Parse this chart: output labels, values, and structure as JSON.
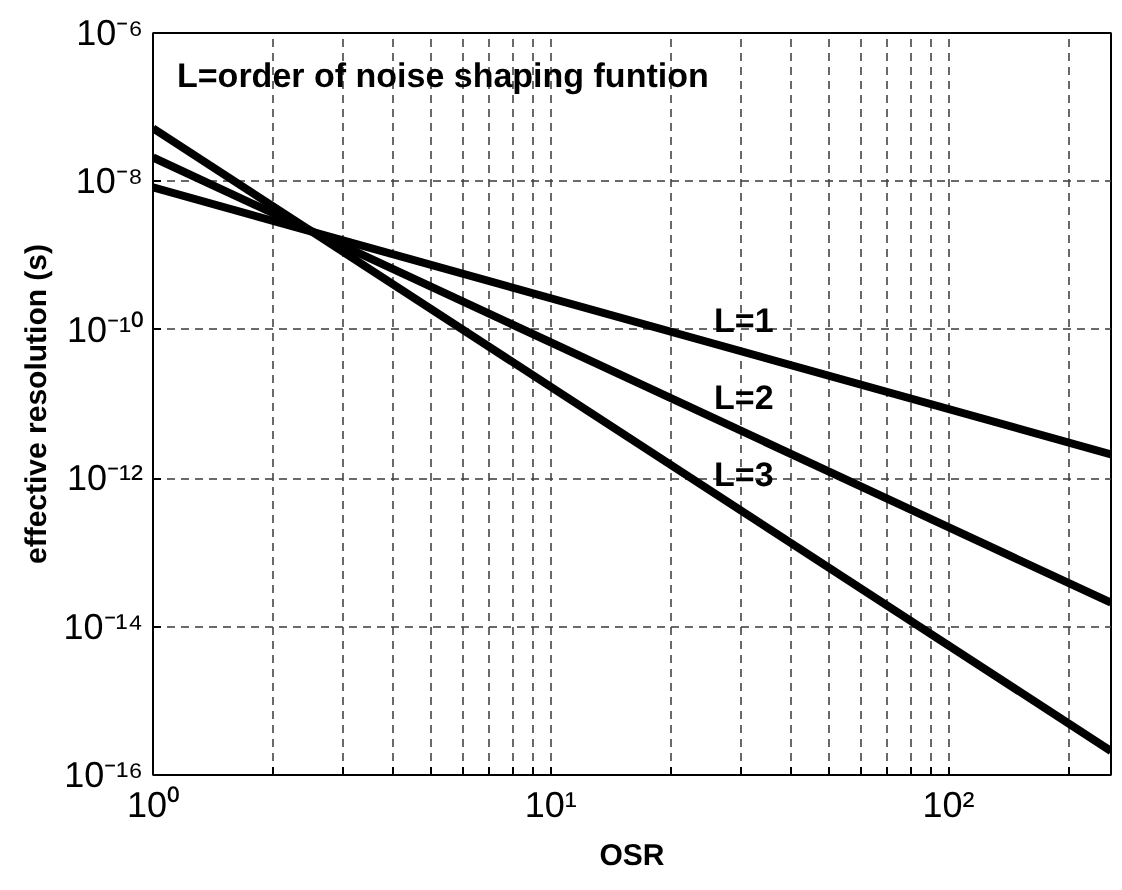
{
  "chart_data": {
    "type": "line",
    "xlabel": "OSR",
    "ylabel": "effective resolution (s)",
    "log": "xy",
    "grid": true,
    "line_style": "solid",
    "marker": "none",
    "xlim": [
      1,
      256
    ],
    "ylim": [
      1e-16,
      1e-06
    ],
    "xticks": [
      {
        "value": 1,
        "label": "10⁰"
      },
      {
        "value": 2,
        "label": null
      },
      {
        "value": 3,
        "label": null
      },
      {
        "value": 4,
        "label": null
      },
      {
        "value": 5,
        "label": null
      },
      {
        "value": 6,
        "label": null
      },
      {
        "value": 7,
        "label": null
      },
      {
        "value": 8,
        "label": null
      },
      {
        "value": 9,
        "label": null
      },
      {
        "value": 10,
        "label": "10¹"
      },
      {
        "value": 20,
        "label": null
      },
      {
        "value": 30,
        "label": null
      },
      {
        "value": 40,
        "label": null
      },
      {
        "value": 50,
        "label": null
      },
      {
        "value": 60,
        "label": null
      },
      {
        "value": 70,
        "label": null
      },
      {
        "value": 80,
        "label": null
      },
      {
        "value": 90,
        "label": null
      },
      {
        "value": 100,
        "label": "10²"
      },
      {
        "value": 200,
        "label": null
      }
    ],
    "yticks": [
      {
        "value": 1e-16,
        "label": "10⁻¹⁶"
      },
      {
        "value": 1e-14,
        "label": "10⁻¹⁴"
      },
      {
        "value": 1e-12,
        "label": "10⁻¹²"
      },
      {
        "value": 1e-10,
        "label": "10⁻¹⁰"
      },
      {
        "value": 1e-08,
        "label": "10⁻⁸"
      },
      {
        "value": 1e-06,
        "label": "10⁻⁶"
      }
    ],
    "x": [
      1,
      256
    ],
    "series": [
      {
        "name": "L=1",
        "color": "#000000",
        "values": [
          8.3e-09,
          2.1e-12
        ]
      },
      {
        "name": "L=2",
        "color": "#000000",
        "values": [
          2.1e-08,
          2.1e-14
        ]
      },
      {
        "name": "L=3",
        "color": "#000000",
        "values": [
          5.2e-08,
          2.1e-16
        ]
      }
    ],
    "annotations": [
      "L=order of noise shaping funtion"
    ]
  }
}
